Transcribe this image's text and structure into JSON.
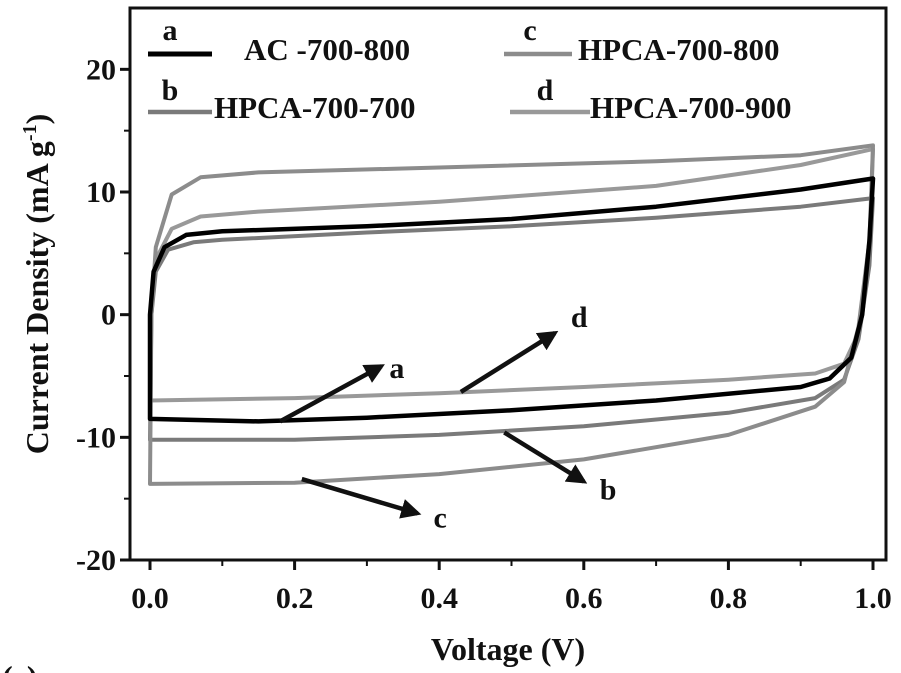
{
  "chart_data": {
    "type": "line",
    "xlabel": "Voltage (V)",
    "ylabel": "Current Density (mA g",
    "ylabel_sup": "-1",
    "ylabel_close": ")",
    "xlim": [
      0,
      1.0
    ],
    "ylim": [
      -20,
      25
    ],
    "xticks": [
      "0.0",
      "0.2",
      "0.4",
      "0.6",
      "0.8",
      "1.0"
    ],
    "xtick_values": [
      0,
      0.2,
      0.4,
      0.6,
      0.8,
      1.0
    ],
    "yticks": [
      "-20",
      "-10",
      "0",
      "10",
      "20"
    ],
    "ytick_values": [
      -20,
      -10,
      0,
      10,
      20
    ],
    "grid": false,
    "legend_position": "top",
    "series": [
      {
        "letter": "a",
        "name": "AC -700-800",
        "color": "#000000",
        "upper": [
          [
            0.0,
            0
          ],
          [
            0.005,
            3.5
          ],
          [
            0.02,
            5.5
          ],
          [
            0.05,
            6.5
          ],
          [
            0.1,
            6.8
          ],
          [
            0.3,
            7.2
          ],
          [
            0.5,
            7.8
          ],
          [
            0.7,
            8.8
          ],
          [
            0.9,
            10.2
          ],
          [
            1.0,
            11.1
          ]
        ],
        "lower": [
          [
            1.0,
            11.1
          ],
          [
            0.995,
            6
          ],
          [
            0.985,
            0
          ],
          [
            0.97,
            -3.5
          ],
          [
            0.94,
            -5.2
          ],
          [
            0.9,
            -5.9
          ],
          [
            0.7,
            -7.0
          ],
          [
            0.5,
            -7.8
          ],
          [
            0.3,
            -8.4
          ],
          [
            0.15,
            -8.7
          ],
          [
            0.0,
            -8.5
          ],
          [
            0.0,
            0
          ]
        ]
      },
      {
        "letter": "b",
        "name": "HPCA-700-700",
        "color": "#7a7a7a",
        "upper": [
          [
            0.0,
            -10.2
          ],
          [
            0.002,
            0
          ],
          [
            0.008,
            3.5
          ],
          [
            0.025,
            5.3
          ],
          [
            0.06,
            5.9
          ],
          [
            0.1,
            6.1
          ],
          [
            0.3,
            6.7
          ],
          [
            0.5,
            7.2
          ],
          [
            0.7,
            7.9
          ],
          [
            0.9,
            8.8
          ],
          [
            1.0,
            9.5
          ]
        ],
        "lower": [
          [
            1.0,
            9.5
          ],
          [
            0.995,
            4
          ],
          [
            0.98,
            -2
          ],
          [
            0.96,
            -5.3
          ],
          [
            0.92,
            -6.8
          ],
          [
            0.8,
            -8.0
          ],
          [
            0.6,
            -9.1
          ],
          [
            0.4,
            -9.8
          ],
          [
            0.2,
            -10.2
          ],
          [
            0.0,
            -10.2
          ]
        ]
      },
      {
        "letter": "c",
        "name": "HPCA-700-800",
        "color": "#8c8c8c",
        "upper": [
          [
            0.0,
            -13.8
          ],
          [
            0.002,
            0
          ],
          [
            0.008,
            5.5
          ],
          [
            0.03,
            9.8
          ],
          [
            0.07,
            11.2
          ],
          [
            0.15,
            11.6
          ],
          [
            0.4,
            12.0
          ],
          [
            0.7,
            12.5
          ],
          [
            0.9,
            13.0
          ],
          [
            1.0,
            13.8
          ]
        ],
        "lower": [
          [
            1.0,
            13.8
          ],
          [
            0.995,
            6
          ],
          [
            0.98,
            -1
          ],
          [
            0.96,
            -5.5
          ],
          [
            0.92,
            -7.5
          ],
          [
            0.8,
            -9.8
          ],
          [
            0.6,
            -11.8
          ],
          [
            0.4,
            -13.0
          ],
          [
            0.2,
            -13.7
          ],
          [
            0.0,
            -13.8
          ]
        ]
      },
      {
        "letter": "d",
        "name": "HPCA-700-900",
        "color": "#999999",
        "upper": [
          [
            0.0,
            -7.0
          ],
          [
            0.002,
            0
          ],
          [
            0.008,
            4.5
          ],
          [
            0.03,
            7.0
          ],
          [
            0.07,
            8.0
          ],
          [
            0.15,
            8.4
          ],
          [
            0.4,
            9.2
          ],
          [
            0.7,
            10.5
          ],
          [
            0.9,
            12.2
          ],
          [
            1.0,
            13.5
          ]
        ],
        "lower": [
          [
            1.0,
            13.5
          ],
          [
            0.995,
            5
          ],
          [
            0.98,
            -1.5
          ],
          [
            0.96,
            -4.0
          ],
          [
            0.92,
            -4.8
          ],
          [
            0.8,
            -5.3
          ],
          [
            0.6,
            -5.9
          ],
          [
            0.4,
            -6.4
          ],
          [
            0.2,
            -6.8
          ],
          [
            0.0,
            -7.0
          ]
        ]
      }
    ],
    "annotations": [
      {
        "label": "a",
        "from": [
          0.18,
          -8.7
        ],
        "to": [
          0.32,
          -4.2
        ]
      },
      {
        "label": "d",
        "from": [
          0.43,
          -6.3
        ],
        "to": [
          0.56,
          -1.5
        ]
      },
      {
        "label": "b",
        "from": [
          0.49,
          -9.6
        ],
        "to": [
          0.6,
          -13.6
        ]
      },
      {
        "label": "c",
        "from": [
          0.21,
          -13.4
        ],
        "to": [
          0.37,
          -16.2
        ]
      }
    ]
  },
  "figure_label": "(c)"
}
